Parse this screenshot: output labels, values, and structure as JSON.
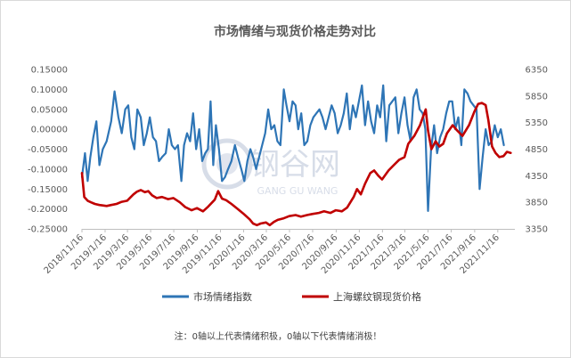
{
  "chart_data": {
    "type": "line",
    "title": "市场情绪与现货价格走势对比",
    "note": "注：0轴以上代表情绪积极，0轴以下代表情绪消极！",
    "watermark": {
      "cn": "钢谷网",
      "en": "GANG GU WANG"
    },
    "y_left": {
      "lim": [
        -0.25,
        0.15
      ],
      "ticks": [
        0.15,
        0.1,
        0.05,
        0.0,
        -0.05,
        -0.1,
        -0.15,
        -0.2,
        -0.25
      ],
      "tick_labels": [
        "0.15000",
        "0.10000",
        "0.05000",
        "0.00000",
        "-0.05000",
        "-0.10000",
        "-0.15000",
        "-0.20000",
        "-0.25000"
      ]
    },
    "y_right": {
      "lim": [
        3350,
        6350
      ],
      "ticks": [
        6350,
        5850,
        5350,
        4850,
        4350,
        3850,
        3350
      ],
      "tick_labels": [
        "6350",
        "5850",
        "5350",
        "4850",
        "4350",
        "3850",
        "3350"
      ]
    },
    "x_ticks": [
      "2018/11/16",
      "2019/1/16",
      "2019/3/16",
      "2019/5/16",
      "2019/7/16",
      "2019/9/16",
      "2019/11/16",
      "2020/1/16",
      "2020/3/16",
      "2020/5/16",
      "2020/7/16",
      "2020/9/16",
      "2020/11/16",
      "2021/1/16",
      "2021/3/16",
      "2021/5/16",
      "2021/7/16",
      "2021/9/16",
      "2021/11/16"
    ],
    "x_range": [
      "2018/11/16",
      "2021/12/31"
    ],
    "series": [
      {
        "name": "市场情绪指数",
        "axis": "left",
        "color": "#2e75b6",
        "points": [
          [
            "2018/11/16",
            -0.12
          ],
          [
            "2018/11/24",
            -0.06
          ],
          [
            "2018/12/1",
            -0.13
          ],
          [
            "2018/12/8",
            -0.07
          ],
          [
            "2018/12/16",
            -0.02
          ],
          [
            "2018/12/24",
            0.02
          ],
          [
            "2019/1/1",
            -0.09
          ],
          [
            "2019/1/10",
            -0.05
          ],
          [
            "2019/1/20",
            -0.03
          ],
          [
            "2019/2/1",
            0.02
          ],
          [
            "2019/2/10",
            0.095
          ],
          [
            "2019/2/20",
            0.03
          ],
          [
            "2019/3/1",
            -0.01
          ],
          [
            "2019/3/10",
            0.05
          ],
          [
            "2019/3/18",
            0.06
          ],
          [
            "2019/3/26",
            -0.02
          ],
          [
            "2019/4/3",
            -0.05
          ],
          [
            "2019/4/11",
            0.05
          ],
          [
            "2019/4/20",
            0.03
          ],
          [
            "2019/4/28",
            -0.04
          ],
          [
            "2019/5/6",
            -0.01
          ],
          [
            "2019/5/14",
            0.03
          ],
          [
            "2019/5/22",
            -0.02
          ],
          [
            "2019/5/30",
            -0.03
          ],
          [
            "2019/6/7",
            -0.08
          ],
          [
            "2019/6/15",
            -0.07
          ],
          [
            "2019/6/25",
            -0.06
          ],
          [
            "2019/7/3",
            0.0
          ],
          [
            "2019/7/11",
            -0.04
          ],
          [
            "2019/7/19",
            -0.05
          ],
          [
            "2019/7/27",
            -0.04
          ],
          [
            "2019/8/5",
            -0.13
          ],
          [
            "2019/8/12",
            -0.04
          ],
          [
            "2019/8/20",
            -0.01
          ],
          [
            "2019/8/28",
            -0.03
          ],
          [
            "2019/9/5",
            0.04
          ],
          [
            "2019/9/13",
            -0.05
          ],
          [
            "2019/9/21",
            0.0
          ],
          [
            "2019/9/29",
            -0.08
          ],
          [
            "2019/10/7",
            -0.06
          ],
          [
            "2019/10/14",
            -0.05
          ],
          [
            "2019/10/21",
            0.07
          ],
          [
            "2019/10/28",
            -0.09
          ],
          [
            "2019/11/4",
            0.01
          ],
          [
            "2019/11/12",
            -0.05
          ],
          [
            "2019/11/20",
            -0.13
          ],
          [
            "2019/11/28",
            -0.12
          ],
          [
            "2019/12/6",
            -0.1
          ],
          [
            "2019/12/15",
            -0.08
          ],
          [
            "2019/12/24",
            -0.04
          ],
          [
            "2020/1/1",
            -0.07
          ],
          [
            "2020/1/10",
            -0.1
          ],
          [
            "2020/1/18",
            -0.13
          ],
          [
            "2020/1/26",
            -0.08
          ],
          [
            "2020/2/3",
            -0.05
          ],
          [
            "2020/2/10",
            -0.07
          ],
          [
            "2020/2/18",
            -0.1
          ],
          [
            "2020/2/26",
            -0.07
          ],
          [
            "2020/3/5",
            -0.04
          ],
          [
            "2020/3/13",
            -0.01
          ],
          [
            "2020/3/21",
            0.05
          ],
          [
            "2020/3/29",
            0.0
          ],
          [
            "2020/4/6",
            0.01
          ],
          [
            "2020/4/14",
            -0.03
          ],
          [
            "2020/4/22",
            -0.04
          ],
          [
            "2020/5/1",
            0.1
          ],
          [
            "2020/5/8",
            0.06
          ],
          [
            "2020/5/16",
            0.02
          ],
          [
            "2020/5/24",
            0.07
          ],
          [
            "2020/6/1",
            0.06
          ],
          [
            "2020/6/8",
            0.0
          ],
          [
            "2020/6/16",
            0.04
          ],
          [
            "2020/6/24",
            -0.04
          ],
          [
            "2020/7/2",
            -0.03
          ],
          [
            "2020/7/10",
            0.01
          ],
          [
            "2020/7/18",
            0.03
          ],
          [
            "2020/7/26",
            0.04
          ],
          [
            "2020/8/3",
            0.05
          ],
          [
            "2020/8/11",
            0.03
          ],
          [
            "2020/8/19",
            0.0
          ],
          [
            "2020/8/27",
            0.03
          ],
          [
            "2020/9/4",
            0.06
          ],
          [
            "2020/9/12",
            0.04
          ],
          [
            "2020/9/20",
            -0.01
          ],
          [
            "2020/9/28",
            0.01
          ],
          [
            "2020/10/6",
            0.04
          ],
          [
            "2020/10/14",
            0.09
          ],
          [
            "2020/10/22",
            0.0
          ],
          [
            "2020/10/30",
            0.06
          ],
          [
            "2020/11/7",
            0.03
          ],
          [
            "2020/11/15",
            0.07
          ],
          [
            "2020/11/23",
            0.11
          ],
          [
            "2020/12/1",
            0.01
          ],
          [
            "2020/12/9",
            0.07
          ],
          [
            "2020/12/17",
            0.02
          ],
          [
            "2020/12/25",
            -0.01
          ],
          [
            "2021/1/2",
            0.06
          ],
          [
            "2021/1/10",
            0.03
          ],
          [
            "2021/1/18",
            0.11
          ],
          [
            "2021/1/26",
            -0.03
          ],
          [
            "2021/2/3",
            0.06
          ],
          [
            "2021/2/11",
            0.07
          ],
          [
            "2021/2/19",
            0.08
          ],
          [
            "2021/2/27",
            -0.01
          ],
          [
            "2021/3/7",
            0.04
          ],
          [
            "2021/3/15",
            0.08
          ],
          [
            "2021/3/23",
            0.01
          ],
          [
            "2021/3/31",
            -0.03
          ],
          [
            "2021/4/8",
            0.08
          ],
          [
            "2021/4/16",
            0.1
          ],
          [
            "2021/4/24",
            0.05
          ],
          [
            "2021/5/2",
            0.04
          ],
          [
            "2021/5/9",
            0.0
          ],
          [
            "2021/5/16",
            -0.205
          ],
          [
            "2021/5/24",
            -0.05
          ],
          [
            "2021/6/1",
            0.01
          ],
          [
            "2021/6/9",
            -0.06
          ],
          [
            "2021/6/17",
            -0.02
          ],
          [
            "2021/6/25",
            0.0
          ],
          [
            "2021/7/3",
            0.04
          ],
          [
            "2021/7/11",
            0.07
          ],
          [
            "2021/7/19",
            0.07
          ],
          [
            "2021/7/27",
            0.0
          ],
          [
            "2021/8/4",
            0.03
          ],
          [
            "2021/8/12",
            -0.04
          ],
          [
            "2021/8/20",
            0.1
          ],
          [
            "2021/8/28",
            0.09
          ],
          [
            "2021/9/5",
            0.07
          ],
          [
            "2021/9/13",
            0.06
          ],
          [
            "2021/9/21",
            0.05
          ],
          [
            "2021/9/29",
            -0.15
          ],
          [
            "2021/10/7",
            -0.07
          ],
          [
            "2021/10/15",
            0.0
          ],
          [
            "2021/10/23",
            -0.04
          ],
          [
            "2021/10/31",
            -0.03
          ],
          [
            "2021/11/8",
            0.01
          ],
          [
            "2021/11/16",
            -0.02
          ],
          [
            "2021/11/24",
            0.0
          ],
          [
            "2021/12/2",
            -0.04
          ]
        ]
      },
      {
        "name": "上海螺纹钢现货价格",
        "axis": "right",
        "color": "#c00000",
        "points": [
          [
            "2018/11/16",
            4400
          ],
          [
            "2018/11/22",
            3950
          ],
          [
            "2018/12/1",
            3880
          ],
          [
            "2018/12/10",
            3850
          ],
          [
            "2018/12/20",
            3820
          ],
          [
            "2019/1/1",
            3800
          ],
          [
            "2019/1/10",
            3790
          ],
          [
            "2019/1/20",
            3780
          ],
          [
            "2019/2/1",
            3800
          ],
          [
            "2019/2/15",
            3820
          ],
          [
            "2019/3/1",
            3860
          ],
          [
            "2019/3/15",
            3880
          ],
          [
            "2019/3/25",
            3950
          ],
          [
            "2019/4/1",
            4000
          ],
          [
            "2019/4/10",
            4050
          ],
          [
            "2019/4/20",
            4080
          ],
          [
            "2019/5/1",
            4040
          ],
          [
            "2019/5/10",
            4060
          ],
          [
            "2019/5/20",
            3980
          ],
          [
            "2019/6/1",
            3930
          ],
          [
            "2019/6/15",
            3950
          ],
          [
            "2019/7/1",
            3910
          ],
          [
            "2019/7/15",
            3930
          ],
          [
            "2019/8/1",
            3850
          ],
          [
            "2019/8/15",
            3760
          ],
          [
            "2019/9/1",
            3700
          ],
          [
            "2019/9/15",
            3740
          ],
          [
            "2019/10/1",
            3680
          ],
          [
            "2019/10/15",
            3770
          ],
          [
            "2019/11/1",
            3900
          ],
          [
            "2019/11/10",
            4060
          ],
          [
            "2019/11/20",
            3920
          ],
          [
            "2019/12/1",
            3890
          ],
          [
            "2019/12/15",
            3820
          ],
          [
            "2020/1/1",
            3720
          ],
          [
            "2020/1/15",
            3640
          ],
          [
            "2020/2/1",
            3530
          ],
          [
            "2020/2/10",
            3450
          ],
          [
            "2020/2/20",
            3420
          ],
          [
            "2020/3/1",
            3450
          ],
          [
            "2020/3/15",
            3470
          ],
          [
            "2020/3/25",
            3420
          ],
          [
            "2020/4/5",
            3480
          ],
          [
            "2020/4/15",
            3520
          ],
          [
            "2020/5/1",
            3550
          ],
          [
            "2020/5/15",
            3590
          ],
          [
            "2020/6/1",
            3610
          ],
          [
            "2020/6/15",
            3580
          ],
          [
            "2020/7/1",
            3610
          ],
          [
            "2020/7/15",
            3630
          ],
          [
            "2020/8/1",
            3650
          ],
          [
            "2020/8/15",
            3680
          ],
          [
            "2020/9/1",
            3650
          ],
          [
            "2020/9/15",
            3700
          ],
          [
            "2020/10/1",
            3680
          ],
          [
            "2020/10/15",
            3750
          ],
          [
            "2020/11/1",
            3950
          ],
          [
            "2020/11/10",
            4100
          ],
          [
            "2020/11/20",
            4000
          ],
          [
            "2020/12/1",
            4200
          ],
          [
            "2020/12/15",
            4400
          ],
          [
            "2020/12/25",
            4450
          ],
          [
            "2021/1/5",
            4350
          ],
          [
            "2021/1/15",
            4280
          ],
          [
            "2021/2/1",
            4450
          ],
          [
            "2021/2/15",
            4550
          ],
          [
            "2021/3/1",
            4650
          ],
          [
            "2021/3/15",
            4700
          ],
          [
            "2021/3/25",
            4950
          ],
          [
            "2021/4/10",
            5100
          ],
          [
            "2021/4/25",
            5300
          ],
          [
            "2021/5/10",
            5600
          ],
          [
            "2021/5/16",
            5200
          ],
          [
            "2021/5/25",
            4850
          ],
          [
            "2021/6/5",
            5000
          ],
          [
            "2021/6/15",
            4900
          ],
          [
            "2021/6/25",
            4950
          ],
          [
            "2021/7/5",
            5150
          ],
          [
            "2021/7/20",
            5300
          ],
          [
            "2021/8/1",
            5200
          ],
          [
            "2021/8/15",
            5100
          ],
          [
            "2021/9/1",
            5300
          ],
          [
            "2021/9/15",
            5550
          ],
          [
            "2021/9/25",
            5700
          ],
          [
            "2021/10/5",
            5720
          ],
          [
            "2021/10/15",
            5680
          ],
          [
            "2021/10/22",
            5400
          ],
          [
            "2021/11/1",
            4900
          ],
          [
            "2021/11/10",
            4780
          ],
          [
            "2021/11/20",
            4700
          ],
          [
            "2021/12/1",
            4720
          ],
          [
            "2021/12/10",
            4800
          ],
          [
            "2021/12/20",
            4780
          ]
        ]
      }
    ],
    "legend_position": "bottom"
  }
}
